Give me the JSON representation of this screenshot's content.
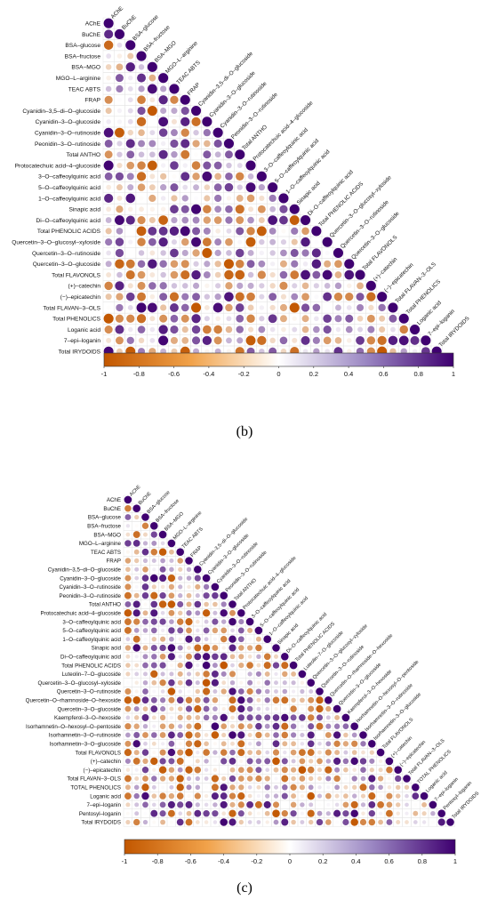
{
  "colors": {
    "neg": "#c25700",
    "mid": "#ffffff",
    "pos": "#3f0070"
  },
  "panels": [
    {
      "label": "(b)"
    },
    {
      "label": "(c)"
    }
  ],
  "chart_data": [
    {
      "type": "heatmap",
      "shape": "lower-triangle correlation matrix (circles)",
      "variables": [
        "AChE",
        "BuChE",
        "BSA–glucose",
        "BSA–fructose",
        "BSA–MGO",
        "MGO–L–arginine",
        "TEAC ABTS",
        "FRAP",
        "Cyanidin–3,5–di–O–glucoside",
        "Cyanidin–3–O–glucoside",
        "Cyanidin–3–O–rutinoside",
        "Peonidin–3–O–rutinoside",
        "Total ANTHO",
        "Protocatechuic acid–4–glucoside",
        "3–O–caffeoylquinic acid",
        "5–O–caffeoylquinic acid",
        "1–O–caffeoylquinic acid",
        "Sinapic acid",
        "Di–O–caffeoylquinic acid",
        "Total PHENOLIC ACIDS",
        "Quercetin–3–O–glucosyl–xyloside",
        "Quercetin–3–O–rutinoside",
        "Quercetin–3–O–glucoside",
        "Total FLAVONOLS",
        "(+)–catechin",
        "(−)–epicatechin",
        "Total FLAVAN–3–OLS",
        "Total PHENOLICS",
        "Loganic acid",
        "7–epi–loganin",
        "Total IRYDOIDS"
      ],
      "colorbar": {
        "ticks": [
          "-1",
          "-0.8",
          "-0.6",
          "-0.4",
          "-0.2",
          "0",
          "0.2",
          "0.4",
          "0.6",
          "0.8",
          "1"
        ],
        "range": [
          -1,
          1
        ]
      }
    },
    {
      "type": "heatmap",
      "shape": "lower-triangle correlation matrix (circles)",
      "variables": [
        "AChE",
        "BuChE",
        "BSA–glucose",
        "BSA–fructose",
        "BSA–MGO",
        "MGO–L–arginine",
        "TEAC ABTS",
        "FRAP",
        "Cyanidin–3,5–di–O–glucoside",
        "Cyanidin–3–O–glucoside",
        "Cyanidin–3–O–rutinoside",
        "Peonidin–3–O–rutinoside",
        "Total ANTHO",
        "Protocatechuic acid–4–glucoside",
        "3–O–caffeoylquinic acid",
        "5–O–caffeoylquinic acid",
        "1–O–caffeoylquinic acid",
        "Sinapic acid",
        "Di–O–caffeoylquinic acid",
        "Total PHENOLIC ACIDS",
        "Luteolin–7–O–glucoside",
        "Quercetin–3–O–glucosyl–xyloside",
        "Quercetin–3–O–rutinoside",
        "Quercetin–O–rhamnoside–O–hexoside",
        "Quercetin–3–O–glucoside",
        "Kaempferol–3–O–hexoside",
        "Isorhamnetin–O–hexosyl–O–pentoside",
        "Isorhamnetin–3–O–rutinoside",
        "Isorhamnetin–3–O–glucoside",
        "Total FLAVONOLS",
        "(+)–catechin",
        "(−)–epicatechin",
        "Total FLAVAN–3–OLS",
        "TOTAL PHENOLICS",
        "Loganic acid",
        "7–epi–loganin",
        "Pentosyl–loganin",
        "Total IRYDOIDS"
      ],
      "colorbar": {
        "ticks": [
          "-1",
          "-0.8",
          "-0.6",
          "-0.4",
          "-0.2",
          "0",
          "0.2",
          "0.4",
          "0.6",
          "0.8",
          "1"
        ],
        "range": [
          -1,
          1
        ]
      }
    }
  ]
}
